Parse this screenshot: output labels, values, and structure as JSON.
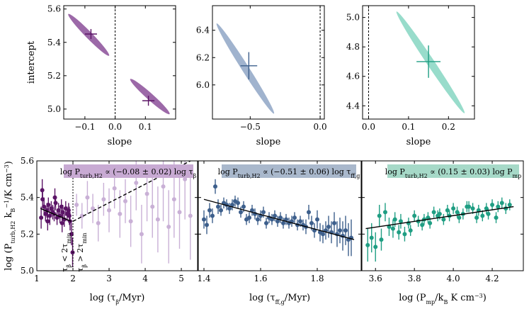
{
  "colors": {
    "purple": "#5b1466",
    "purple_light": "#c9b0d6",
    "purple_box": "#c8aad3",
    "blue": "#3d5f8c",
    "blue_light": "#8fa6c6",
    "blue_box": "#a9b8cc",
    "teal": "#1f9e83",
    "teal_light": "#86d6c2",
    "teal_box": "#a6d9c8"
  },
  "chart_data": [
    {
      "type": "scatter",
      "panel": "top-left",
      "xlabel": "slope",
      "ylabel": "intercept",
      "xlim": [
        -0.17,
        0.2
      ],
      "ylim": [
        4.94,
        5.62
      ],
      "xticks": [
        -0.1,
        0.0,
        0.1
      ],
      "xtick_labels": [
        "−0.1",
        "0.0",
        "0.1"
      ],
      "yticks": [
        5.0,
        5.2,
        5.4,
        5.6
      ],
      "ytick_labels": [
        "5.0",
        "5.2",
        "5.4",
        "5.6"
      ],
      "ellipses": [
        {
          "x1": -0.155,
          "y1": 5.57,
          "x2": -0.02,
          "y2": 5.32,
          "width_y": 0.03
        },
        {
          "x1": 0.05,
          "y1": 5.18,
          "x2": 0.18,
          "y2": 4.97,
          "width_y": 0.03
        }
      ],
      "best_fits": [
        {
          "x": -0.08,
          "y": 5.45,
          "xerr": 0.02,
          "yerr": 0.03
        },
        {
          "x": 0.11,
          "y": 5.05,
          "xerr": 0.02,
          "yerr": 0.03
        }
      ],
      "vline": 0.0
    },
    {
      "type": "scatter",
      "panel": "top-middle",
      "xlabel": "slope",
      "ylabel": "",
      "xlim": [
        -0.77,
        0.03
      ],
      "ylim": [
        5.75,
        6.58
      ],
      "xticks": [
        -0.5,
        0.0
      ],
      "xtick_labels": [
        "−0.5",
        "0.0"
      ],
      "yticks": [
        6.0,
        6.2,
        6.4
      ],
      "ytick_labels": [
        "6.0",
        "6.2",
        "6.4"
      ],
      "ellipses": [
        {
          "x1": -0.74,
          "y1": 6.45,
          "x2": -0.33,
          "y2": 5.79,
          "width_y": 0.04
        }
      ],
      "best_fits": [
        {
          "x": -0.51,
          "y": 6.14,
          "xerr": 0.06,
          "yerr": 0.1
        }
      ],
      "vline": 0.0
    },
    {
      "type": "scatter",
      "panel": "top-right",
      "xlabel": "slope",
      "ylabel": "",
      "xlim": [
        -0.015,
        0.265
      ],
      "ylim": [
        4.31,
        5.08
      ],
      "xticks": [
        0.0,
        0.1,
        0.2
      ],
      "xtick_labels": [
        "0.0",
        "0.1",
        "0.2"
      ],
      "yticks": [
        4.4,
        4.6,
        4.8,
        5.0
      ],
      "ytick_labels": [
        "4.4",
        "4.6",
        "4.8",
        "5.0"
      ],
      "ellipses": [
        {
          "x1": 0.07,
          "y1": 5.04,
          "x2": 0.24,
          "y2": 4.35,
          "width_y": 0.04
        }
      ],
      "best_fits": [
        {
          "x": 0.15,
          "y": 4.7,
          "xerr": 0.03,
          "yerr": 0.11
        }
      ],
      "vline": 0.0
    },
    {
      "type": "scatter",
      "panel": "bottom-left",
      "xlabel": "log (τβ/Myr)",
      "ylabel": "log (Pturb,H2 kB−1/K cm−3)",
      "annotation": "log Pturb,H2 ∝ (−0.08 ± 0.02) log τβ",
      "xlim": [
        1.0,
        5.45
      ],
      "ylim": [
        5.0,
        5.6
      ],
      "xticks": [
        1,
        2,
        3,
        4,
        5
      ],
      "xtick_labels": [
        "1",
        "2",
        "3",
        "4",
        "5"
      ],
      "yticks": [
        5.0,
        5.2,
        5.4,
        5.6
      ],
      "ytick_labels": [
        "5.0",
        "5.2",
        "5.4",
        "5.6"
      ],
      "vline": 2.0,
      "vline_labels": [
        "τβ < 2τmin",
        "τβ > 2τmin"
      ],
      "fit_line_solid": {
        "x": [
          1.1,
          1.95
        ],
        "y": [
          5.34,
          5.27
        ]
      },
      "fit_line_dashed": {
        "x": [
          2.0,
          5.45
        ],
        "y": [
          5.27,
          5.62
        ]
      },
      "series": [
        {
          "name": "τβ < 2τmin",
          "x": [
            1.12,
            1.16,
            1.2,
            1.24,
            1.28,
            1.32,
            1.36,
            1.4,
            1.44,
            1.48,
            1.52,
            1.56,
            1.6,
            1.64,
            1.68,
            1.72,
            1.76,
            1.8,
            1.84,
            1.88,
            1.92,
            1.96,
            1.99,
            1.15,
            1.3,
            1.5,
            1.7,
            1.9
          ],
          "y": [
            5.29,
            5.39,
            5.35,
            5.31,
            5.33,
            5.36,
            5.3,
            5.34,
            5.32,
            5.31,
            5.37,
            5.29,
            5.33,
            5.3,
            5.35,
            5.32,
            5.28,
            5.34,
            5.31,
            5.33,
            5.27,
            5.2,
            5.1,
            5.44,
            5.27,
            5.4,
            5.26,
            5.3
          ],
          "yerr": [
            0.06,
            0.05,
            0.05,
            0.04,
            0.04,
            0.04,
            0.05,
            0.04,
            0.04,
            0.04,
            0.04,
            0.04,
            0.04,
            0.04,
            0.04,
            0.04,
            0.04,
            0.04,
            0.04,
            0.04,
            0.05,
            0.06,
            0.08,
            0.06,
            0.05,
            0.05,
            0.05,
            0.05
          ]
        },
        {
          "name": "τβ > 2τmin",
          "x": [
            2.1,
            2.25,
            2.4,
            2.55,
            2.7,
            2.85,
            3.0,
            3.15,
            3.3,
            3.45,
            3.6,
            3.75,
            3.9,
            4.05,
            4.2,
            4.35,
            4.5,
            4.65,
            4.8,
            4.95,
            5.1,
            5.25
          ],
          "y": [
            5.36,
            5.3,
            5.4,
            5.34,
            5.26,
            5.39,
            5.33,
            5.45,
            5.31,
            5.38,
            5.27,
            5.48,
            5.2,
            5.42,
            5.35,
            5.28,
            5.46,
            5.24,
            5.39,
            5.32,
            5.5,
            5.3
          ],
          "yerr": [
            0.06,
            0.07,
            0.09,
            0.08,
            0.1,
            0.09,
            0.12,
            0.11,
            0.13,
            0.12,
            0.14,
            0.15,
            0.16,
            0.15,
            0.17,
            0.18,
            0.19,
            0.2,
            0.21,
            0.2,
            0.22,
            0.24
          ]
        }
      ]
    },
    {
      "type": "scatter",
      "panel": "bottom-middle",
      "xlabel": "log (τff,g/Myr)",
      "ylabel": "",
      "annotation": "log Pturb,H2 ∝ (−0.51 ± 0.06) log τff,g",
      "xlim": [
        1.38,
        1.955
      ],
      "ylim": [
        5.0,
        5.6
      ],
      "xticks": [
        1.4,
        1.6,
        1.8
      ],
      "xtick_labels": [
        "1.4",
        "1.6",
        "1.8"
      ],
      "fit_line": {
        "x": [
          1.4,
          1.93
        ],
        "y": [
          5.39,
          5.17
        ]
      },
      "series": [
        {
          "name": "data",
          "x": [
            1.4,
            1.41,
            1.42,
            1.43,
            1.44,
            1.45,
            1.46,
            1.47,
            1.48,
            1.49,
            1.5,
            1.51,
            1.52,
            1.53,
            1.54,
            1.55,
            1.56,
            1.57,
            1.58,
            1.59,
            1.6,
            1.61,
            1.62,
            1.63,
            1.64,
            1.65,
            1.66,
            1.67,
            1.68,
            1.69,
            1.7,
            1.71,
            1.72,
            1.73,
            1.74,
            1.75,
            1.76,
            1.77,
            1.78,
            1.79,
            1.8,
            1.81,
            1.82,
            1.83,
            1.84,
            1.85,
            1.86,
            1.87,
            1.88,
            1.89,
            1.9,
            1.91,
            1.92
          ],
          "y": [
            5.28,
            5.25,
            5.33,
            5.3,
            5.46,
            5.35,
            5.33,
            5.37,
            5.36,
            5.34,
            5.36,
            5.38,
            5.37,
            5.32,
            5.35,
            5.28,
            5.29,
            5.33,
            5.31,
            5.28,
            5.3,
            5.32,
            5.26,
            5.29,
            5.28,
            5.3,
            5.27,
            5.29,
            5.26,
            5.28,
            5.26,
            5.27,
            5.29,
            5.25,
            5.27,
            5.25,
            5.24,
            5.32,
            5.26,
            5.22,
            5.28,
            5.21,
            5.2,
            5.22,
            5.24,
            5.21,
            5.26,
            5.2,
            5.22,
            5.19,
            5.22,
            5.17,
            5.18
          ],
          "yerr": [
            0.05,
            0.05,
            0.04,
            0.04,
            0.04,
            0.04,
            0.03,
            0.03,
            0.03,
            0.03,
            0.03,
            0.03,
            0.03,
            0.03,
            0.03,
            0.03,
            0.03,
            0.03,
            0.03,
            0.03,
            0.03,
            0.03,
            0.03,
            0.03,
            0.03,
            0.03,
            0.03,
            0.03,
            0.03,
            0.03,
            0.03,
            0.03,
            0.03,
            0.03,
            0.03,
            0.03,
            0.04,
            0.04,
            0.04,
            0.04,
            0.05,
            0.05,
            0.05,
            0.05,
            0.06,
            0.06,
            0.06,
            0.07,
            0.07,
            0.08,
            0.08,
            0.09,
            0.1
          ]
        }
      ]
    },
    {
      "type": "scatter",
      "panel": "bottom-right",
      "xlabel": "log (Pmp/kB K cm−3)",
      "ylabel": "",
      "annotation": "log Pturb,H2 ∝ (0.15 ± 0.03) log Pmp",
      "xlim": [
        3.53,
        4.36
      ],
      "ylim": [
        5.0,
        5.6
      ],
      "xticks": [
        3.6,
        3.8,
        4.0,
        4.2
      ],
      "xtick_labels": [
        "3.6",
        "3.8",
        "4.0",
        "4.2"
      ],
      "fit_line": {
        "x": [
          3.55,
          4.31
        ],
        "y": [
          5.23,
          5.35
        ]
      },
      "series": [
        {
          "name": "data",
          "x": [
            3.56,
            3.58,
            3.6,
            3.62,
            3.63,
            3.65,
            3.67,
            3.69,
            3.7,
            3.72,
            3.73,
            3.75,
            3.77,
            3.78,
            3.8,
            3.82,
            3.84,
            3.85,
            3.87,
            3.88,
            3.9,
            3.92,
            3.93,
            3.95,
            3.97,
            3.98,
            4.0,
            4.02,
            4.03,
            4.05,
            4.07,
            4.08,
            4.1,
            4.12,
            4.13,
            4.15,
            4.17,
            4.18,
            4.2,
            4.22,
            4.23,
            4.25,
            4.27,
            4.29
          ],
          "y": [
            5.14,
            5.18,
            5.13,
            5.3,
            5.17,
            5.32,
            5.24,
            5.23,
            5.28,
            5.21,
            5.27,
            5.2,
            5.26,
            5.22,
            5.3,
            5.27,
            5.25,
            5.28,
            5.29,
            5.26,
            5.32,
            5.3,
            5.31,
            5.28,
            5.33,
            5.3,
            5.34,
            5.32,
            5.29,
            5.31,
            5.35,
            5.35,
            5.34,
            5.29,
            5.33,
            5.3,
            5.34,
            5.31,
            5.36,
            5.29,
            5.35,
            5.37,
            5.34,
            5.36
          ],
          "yerr": [
            0.09,
            0.08,
            0.08,
            0.06,
            0.06,
            0.05,
            0.05,
            0.05,
            0.04,
            0.04,
            0.04,
            0.04,
            0.03,
            0.03,
            0.03,
            0.03,
            0.03,
            0.03,
            0.03,
            0.03,
            0.03,
            0.03,
            0.03,
            0.03,
            0.03,
            0.03,
            0.03,
            0.03,
            0.03,
            0.03,
            0.03,
            0.03,
            0.03,
            0.03,
            0.03,
            0.03,
            0.03,
            0.03,
            0.03,
            0.03,
            0.03,
            0.03,
            0.03,
            0.03
          ]
        }
      ]
    }
  ]
}
